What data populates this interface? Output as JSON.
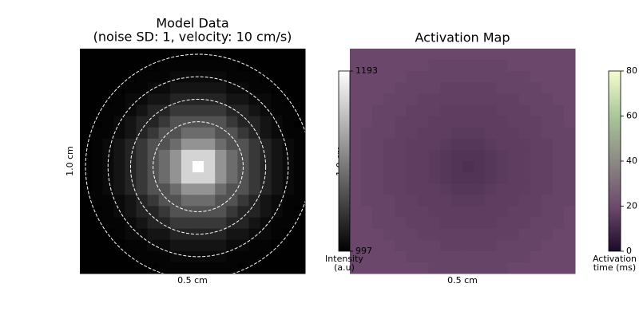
{
  "chart_data": [
    {
      "type": "heatmap",
      "title": "Model Data",
      "subtitle": "(noise SD: 1, velocity: 10 cm/s)",
      "xlabel": "0.5 cm",
      "ylabel": "1.0 cm",
      "colormap": [
        "#000000",
        "#ffffff"
      ],
      "zlim": [
        997,
        1193
      ],
      "zticks": [
        997,
        1193
      ],
      "colorbar_label": [
        "Intensity",
        "(a.u)"
      ],
      "contours": [
        4,
        6,
        8,
        10
      ],
      "z": [
        [
          998,
          998,
          998,
          998,
          998,
          998,
          998,
          998,
          998,
          998,
          998,
          998,
          998,
          998,
          998,
          998,
          998,
          998,
          998,
          998
        ],
        [
          998,
          998,
          998,
          998,
          998,
          998,
          998,
          1000,
          1000,
          1000,
          1000,
          1000,
          1000,
          1000,
          998,
          998,
          998,
          998,
          998,
          998
        ],
        [
          998,
          998,
          998,
          998,
          998,
          1000,
          1000,
          1000,
          1005,
          1005,
          1005,
          1005,
          1005,
          1000,
          1000,
          1000,
          998,
          998,
          998,
          998
        ],
        [
          998,
          998,
          998,
          998,
          1000,
          1000,
          1005,
          1005,
          1012,
          1012,
          1012,
          1012,
          1012,
          1005,
          1005,
          1000,
          1000,
          998,
          998,
          998
        ],
        [
          998,
          998,
          998,
          1000,
          1005,
          1005,
          1012,
          1012,
          1025,
          1025,
          1025,
          1025,
          1025,
          1012,
          1012,
          1005,
          1005,
          1000,
          998,
          998
        ],
        [
          998,
          998,
          1000,
          1000,
          1005,
          1012,
          1025,
          1025,
          1040,
          1040,
          1040,
          1040,
          1040,
          1025,
          1025,
          1012,
          1005,
          1000,
          1000,
          998
        ],
        [
          998,
          998,
          1000,
          1005,
          1012,
          1025,
          1025,
          1040,
          1060,
          1060,
          1060,
          1060,
          1060,
          1040,
          1025,
          1025,
          1012,
          1005,
          1000,
          998
        ],
        [
          998,
          1000,
          1000,
          1005,
          1012,
          1025,
          1040,
          1060,
          1060,
          1080,
          1080,
          1080,
          1060,
          1060,
          1040,
          1025,
          1012,
          1005,
          1000,
          1000
        ],
        [
          998,
          1000,
          1005,
          1012,
          1025,
          1040,
          1060,
          1060,
          1080,
          1110,
          1110,
          1110,
          1080,
          1060,
          1060,
          1040,
          1025,
          1012,
          1005,
          1000
        ],
        [
          998,
          1000,
          1005,
          1012,
          1025,
          1040,
          1060,
          1080,
          1110,
          1160,
          1160,
          1160,
          1110,
          1080,
          1060,
          1040,
          1025,
          1012,
          1005,
          1000
        ],
        [
          998,
          1000,
          1005,
          1012,
          1025,
          1040,
          1060,
          1080,
          1110,
          1160,
          1193,
          1160,
          1110,
          1080,
          1060,
          1040,
          1025,
          1012,
          1005,
          1000
        ],
        [
          998,
          1000,
          1005,
          1012,
          1025,
          1040,
          1060,
          1080,
          1110,
          1160,
          1160,
          1160,
          1110,
          1080,
          1060,
          1040,
          1025,
          1012,
          1005,
          1000
        ],
        [
          998,
          1000,
          1005,
          1012,
          1025,
          1040,
          1060,
          1060,
          1080,
          1110,
          1110,
          1110,
          1080,
          1060,
          1060,
          1040,
          1025,
          1012,
          1005,
          1000
        ],
        [
          998,
          1000,
          1000,
          1005,
          1012,
          1025,
          1040,
          1060,
          1060,
          1080,
          1080,
          1080,
          1060,
          1060,
          1040,
          1025,
          1012,
          1005,
          1000,
          1000
        ],
        [
          998,
          998,
          1000,
          1005,
          1012,
          1025,
          1025,
          1040,
          1060,
          1060,
          1060,
          1060,
          1060,
          1040,
          1025,
          1025,
          1012,
          1005,
          1000,
          998
        ],
        [
          998,
          998,
          1000,
          1000,
          1005,
          1012,
          1025,
          1025,
          1040,
          1040,
          1040,
          1040,
          1040,
          1025,
          1025,
          1012,
          1005,
          1000,
          1000,
          998
        ],
        [
          998,
          998,
          998,
          1000,
          1005,
          1005,
          1012,
          1012,
          1025,
          1025,
          1025,
          1025,
          1025,
          1012,
          1012,
          1005,
          1005,
          1000,
          998,
          998
        ],
        [
          998,
          998,
          998,
          998,
          1000,
          1000,
          1005,
          1005,
          1012,
          1012,
          1012,
          1012,
          1012,
          1005,
          1005,
          1000,
          1000,
          998,
          998,
          998
        ],
        [
          998,
          998,
          998,
          998,
          998,
          1000,
          1000,
          1000,
          1005,
          1005,
          1005,
          1005,
          1005,
          1000,
          1000,
          1000,
          998,
          998,
          998,
          998
        ],
        [
          998,
          998,
          998,
          998,
          998,
          998,
          998,
          1000,
          1000,
          1000,
          1000,
          1000,
          1000,
          1000,
          998,
          998,
          998,
          998,
          998,
          998
        ]
      ]
    },
    {
      "type": "heatmap",
      "title": "Activation Map",
      "xlabel": "0.5 cm",
      "ylabel": "1.0 cm",
      "colormap": [
        "#1c0a2a",
        "#6e4a6e",
        "#8c8a84",
        "#a9c79a",
        "#f5fdd0"
      ],
      "zlim": [
        0,
        80
      ],
      "zticks": [
        0,
        20,
        40,
        60,
        80
      ],
      "colorbar_label": [
        "Activation",
        "time (ms)"
      ],
      "z": [
        [
          19,
          19,
          19,
          19,
          19,
          19,
          19,
          19,
          19,
          19,
          19,
          19,
          19,
          19,
          19,
          19,
          19,
          19,
          19,
          19
        ],
        [
          19,
          19,
          19,
          19,
          19,
          19,
          19,
          18,
          18,
          18,
          18,
          18,
          18,
          18,
          19,
          19,
          19,
          19,
          19,
          19
        ],
        [
          19,
          19,
          19,
          19,
          19,
          18,
          18,
          18,
          18,
          18,
          18,
          18,
          18,
          18,
          18,
          18,
          19,
          19,
          19,
          19
        ],
        [
          19,
          19,
          19,
          19,
          18,
          18,
          18,
          18,
          17,
          17,
          17,
          17,
          17,
          18,
          18,
          18,
          18,
          19,
          19,
          19
        ],
        [
          19,
          19,
          19,
          18,
          18,
          18,
          17,
          17,
          17,
          17,
          17,
          17,
          17,
          17,
          17,
          18,
          18,
          18,
          19,
          19
        ],
        [
          19,
          19,
          18,
          18,
          18,
          17,
          17,
          17,
          16,
          16,
          16,
          16,
          16,
          17,
          17,
          17,
          18,
          18,
          18,
          19
        ],
        [
          19,
          19,
          18,
          18,
          17,
          17,
          17,
          16,
          16,
          16,
          16,
          16,
          16,
          16,
          17,
          17,
          17,
          18,
          18,
          19
        ],
        [
          19,
          18,
          18,
          18,
          17,
          17,
          16,
          16,
          16,
          15,
          15,
          15,
          16,
          16,
          16,
          17,
          17,
          18,
          18,
          18
        ],
        [
          19,
          18,
          18,
          17,
          17,
          16,
          16,
          16,
          15,
          14,
          14,
          14,
          15,
          16,
          16,
          16,
          17,
          17,
          18,
          18
        ],
        [
          19,
          18,
          18,
          17,
          17,
          16,
          16,
          15,
          14,
          13,
          13,
          13,
          14,
          15,
          16,
          16,
          17,
          17,
          18,
          18
        ],
        [
          19,
          18,
          18,
          17,
          17,
          16,
          16,
          15,
          14,
          13,
          12,
          13,
          14,
          15,
          16,
          16,
          17,
          17,
          18,
          18
        ],
        [
          19,
          18,
          18,
          17,
          17,
          16,
          16,
          15,
          14,
          13,
          13,
          13,
          14,
          15,
          16,
          16,
          17,
          17,
          18,
          18
        ],
        [
          19,
          18,
          18,
          17,
          17,
          16,
          16,
          16,
          15,
          14,
          14,
          14,
          15,
          16,
          16,
          16,
          17,
          17,
          18,
          18
        ],
        [
          19,
          18,
          18,
          18,
          17,
          17,
          16,
          16,
          16,
          15,
          15,
          15,
          16,
          16,
          16,
          17,
          17,
          18,
          18,
          18
        ],
        [
          19,
          19,
          18,
          18,
          17,
          17,
          17,
          16,
          16,
          16,
          16,
          16,
          16,
          16,
          17,
          17,
          17,
          18,
          18,
          19
        ],
        [
          19,
          19,
          18,
          18,
          18,
          17,
          17,
          17,
          16,
          16,
          16,
          16,
          16,
          17,
          17,
          17,
          18,
          18,
          18,
          19
        ],
        [
          19,
          19,
          19,
          18,
          18,
          18,
          17,
          17,
          17,
          17,
          17,
          17,
          17,
          17,
          17,
          18,
          18,
          18,
          19,
          19
        ],
        [
          19,
          19,
          19,
          19,
          18,
          18,
          18,
          18,
          17,
          17,
          17,
          17,
          17,
          18,
          18,
          18,
          18,
          19,
          19,
          19
        ],
        [
          19,
          19,
          19,
          19,
          19,
          18,
          18,
          18,
          18,
          18,
          18,
          18,
          18,
          18,
          18,
          18,
          19,
          19,
          19,
          19
        ],
        [
          19,
          19,
          19,
          19,
          19,
          19,
          19,
          18,
          18,
          18,
          18,
          18,
          18,
          18,
          19,
          19,
          19,
          19,
          19,
          19
        ]
      ]
    }
  ]
}
